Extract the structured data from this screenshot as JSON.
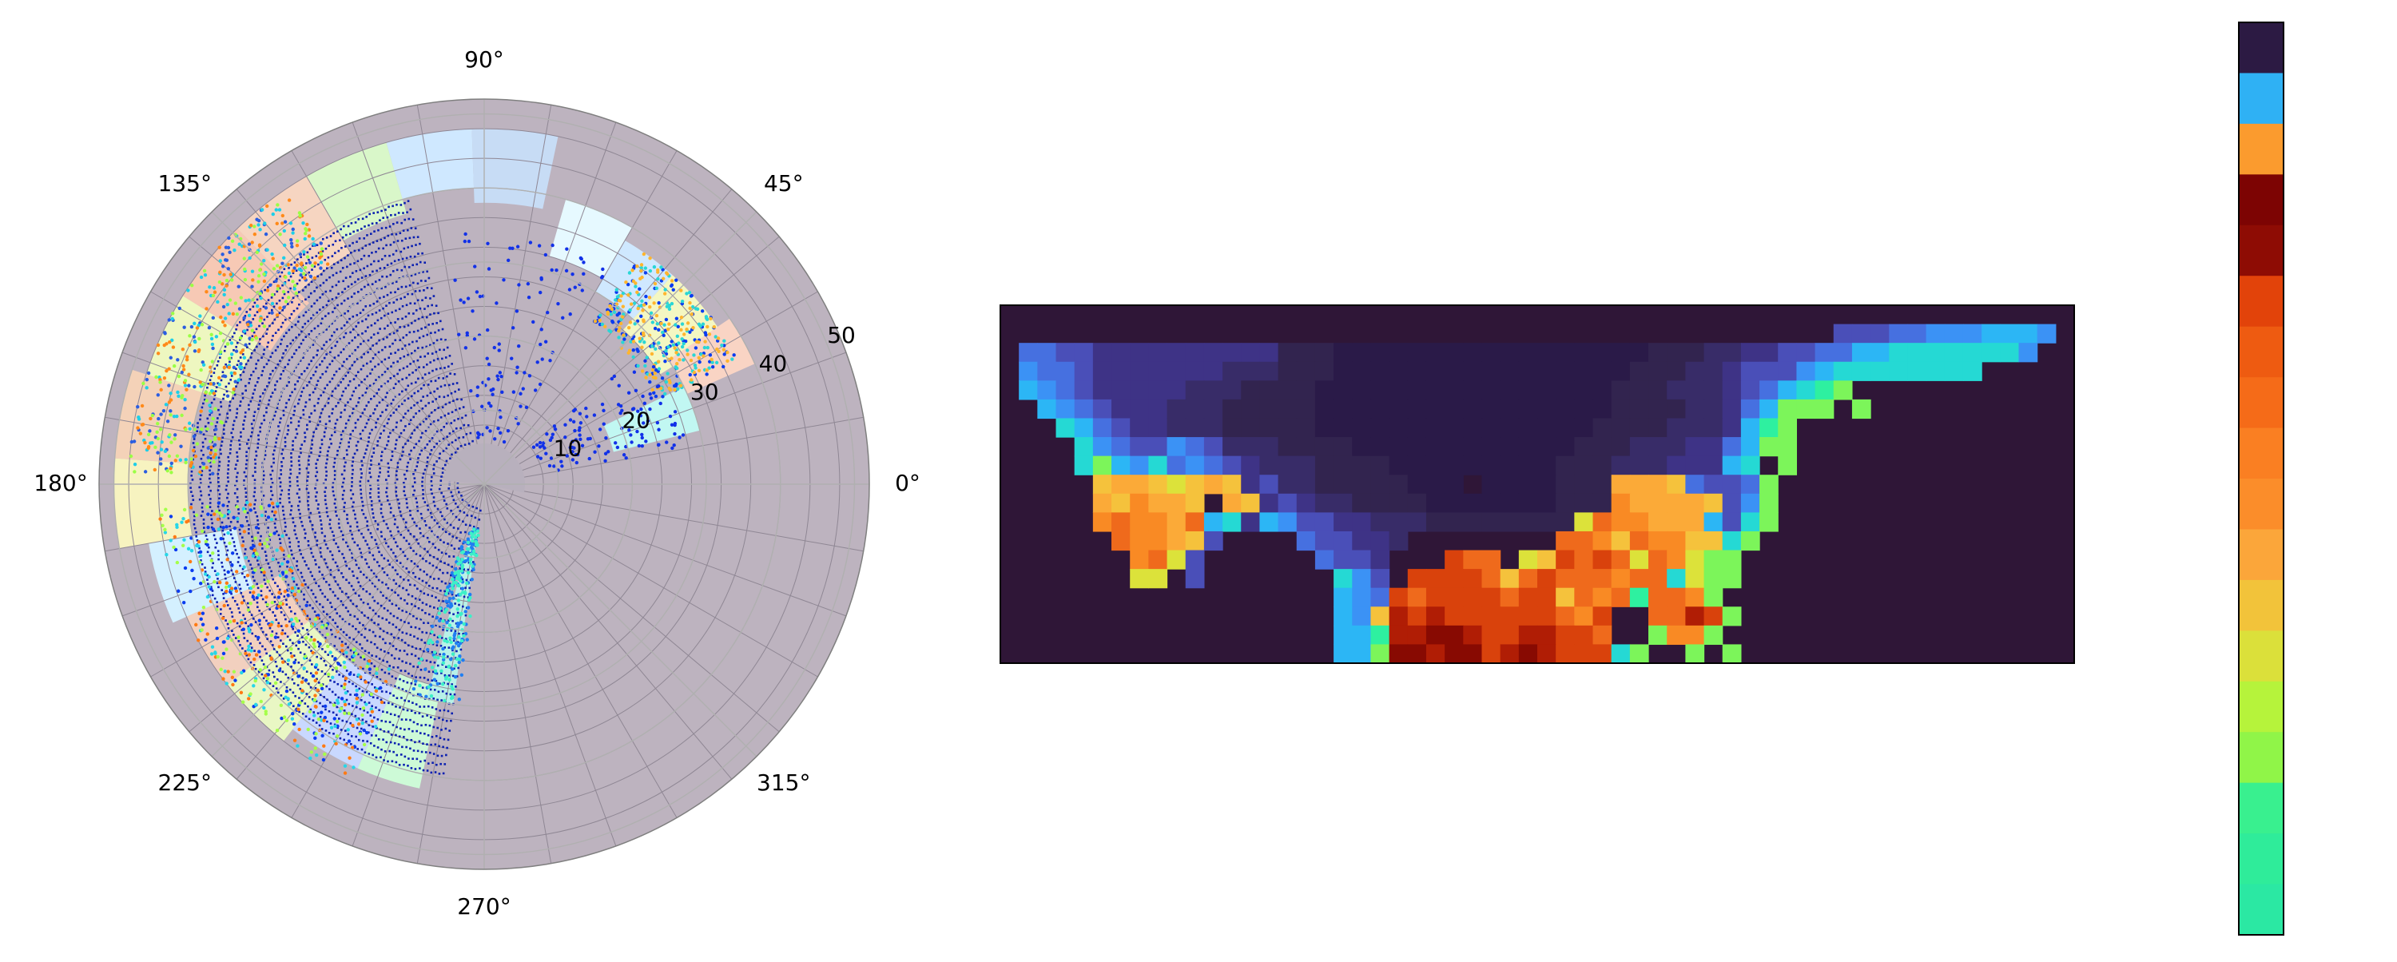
{
  "chart_data": [
    {
      "type": "scatter",
      "subtype": "polar",
      "title": "",
      "angular_ticks": [
        {
          "deg": 0,
          "label": "0°"
        },
        {
          "deg": 45,
          "label": "45°"
        },
        {
          "deg": 90,
          "label": "90°"
        },
        {
          "deg": 135,
          "label": "135°"
        },
        {
          "deg": 180,
          "label": "180°"
        },
        {
          "deg": 225,
          "label": "225°"
        },
        {
          "deg": 270,
          "label": "270°"
        },
        {
          "deg": 315,
          "label": "315°"
        }
      ],
      "radial_ticks": [
        {
          "r": 10,
          "label": "10"
        },
        {
          "r": 20,
          "label": "20"
        },
        {
          "r": 30,
          "label": "30"
        },
        {
          "r": 40,
          "label": "40"
        },
        {
          "r": 50,
          "label": "50"
        }
      ],
      "rlim": [
        0,
        52
      ],
      "radial_label_angle_deg": 22.5,
      "grid": true,
      "background_cell_color": "#bdb3bf",
      "ring_point_color": "#0a1fb0",
      "contour_rings": {
        "r_start": 3.5,
        "r_step": 1.2,
        "r_end": 40,
        "theta_start_deg": 105,
        "theta_end_deg": 262
      },
      "colored_cells": [
        {
          "theta": [
            78,
            92
          ],
          "r": [
            38,
            48
          ],
          "color": "#c7dcf5"
        },
        {
          "theta": [
            92,
            106
          ],
          "r": [
            40,
            48
          ],
          "color": "#cfe8ff"
        },
        {
          "theta": [
            106,
            120
          ],
          "r": [
            38,
            48
          ],
          "color": "#d9f7c9"
        },
        {
          "theta": [
            120,
            134
          ],
          "r": [
            36,
            48
          ],
          "color": "#f6d5c1"
        },
        {
          "theta": [
            134,
            148
          ],
          "r": [
            34,
            48
          ],
          "color": "#f7c9b5"
        },
        {
          "theta": [
            148,
            162
          ],
          "r": [
            36,
            48
          ],
          "color": "#eef7c0"
        },
        {
          "theta": [
            162,
            176
          ],
          "r": [
            40,
            50
          ],
          "color": "#f4d2b8"
        },
        {
          "theta": [
            176,
            190
          ],
          "r": [
            40,
            50
          ],
          "color": "#f7f3c0"
        },
        {
          "theta": [
            190,
            204
          ],
          "r": [
            34,
            46
          ],
          "color": "#d4f0ff"
        },
        {
          "theta": [
            204,
            218
          ],
          "r": [
            30,
            44
          ],
          "color": "#f2d0bf"
        },
        {
          "theta": [
            218,
            232
          ],
          "r": [
            30,
            44
          ],
          "color": "#e9f7c4"
        },
        {
          "theta": [
            232,
            246
          ],
          "r": [
            30,
            42
          ],
          "color": "#c9d8ff"
        },
        {
          "theta": [
            246,
            258
          ],
          "r": [
            28,
            42
          ],
          "color": "#cdfad7"
        },
        {
          "theta": [
            255,
            262
          ],
          "r": [
            6,
            30
          ],
          "color": "#b8f1e8"
        },
        {
          "theta": [
            32,
            48
          ],
          "r": [
            28,
            38
          ],
          "color": "#f4f7c2"
        },
        {
          "theta": [
            24,
            34
          ],
          "r": [
            30,
            40
          ],
          "color": "#f9d4c4"
        },
        {
          "theta": [
            48,
            60
          ],
          "r": [
            30,
            38
          ],
          "color": "#cfe8ff"
        },
        {
          "theta": [
            60,
            74
          ],
          "r": [
            32,
            40
          ],
          "color": "#e6f9ff"
        },
        {
          "theta": [
            14,
            26
          ],
          "r": [
            18,
            30
          ],
          "color": "#c1f7f2"
        }
      ],
      "scatter_clusters": [
        {
          "theta": [
            124,
            178
          ],
          "r": [
            36,
            48
          ],
          "color": "#2b5de0"
        },
        {
          "theta": [
            124,
            178
          ],
          "r": [
            36,
            48
          ],
          "color": "#1ecfe8"
        },
        {
          "theta": [
            124,
            178
          ],
          "r": [
            36,
            48
          ],
          "color": "#ff8a1a"
        },
        {
          "theta": [
            124,
            178
          ],
          "r": [
            36,
            48
          ],
          "color": "#9bff45"
        },
        {
          "theta": [
            184,
            246
          ],
          "r": [
            28,
            44
          ],
          "color": "#0a3cf0"
        },
        {
          "theta": [
            184,
            246
          ],
          "r": [
            28,
            44
          ],
          "color": "#27d6e8"
        },
        {
          "theta": [
            184,
            246
          ],
          "r": [
            28,
            44
          ],
          "color": "#ff7a14"
        },
        {
          "theta": [
            184,
            246
          ],
          "r": [
            28,
            44
          ],
          "color": "#a5ff4a"
        },
        {
          "theta": [
            26,
            56
          ],
          "r": [
            26,
            38
          ],
          "color": "#0a3cf0"
        },
        {
          "theta": [
            26,
            56
          ],
          "r": [
            26,
            38
          ],
          "color": "#2ad6d6"
        },
        {
          "theta": [
            26,
            56
          ],
          "r": [
            26,
            38
          ],
          "color": "#ffb52e"
        },
        {
          "theta": [
            60,
            100
          ],
          "r": [
            6,
            34
          ],
          "color": "#1231e8"
        },
        {
          "theta": [
            10,
            40
          ],
          "r": [
            8,
            28
          ],
          "color": "#1231e8"
        },
        {
          "theta": [
            250,
            264
          ],
          "r": [
            6,
            30
          ],
          "color": "#1f7ef2"
        },
        {
          "theta": [
            250,
            264
          ],
          "r": [
            6,
            30
          ],
          "color": "#3cf0c8"
        }
      ]
    },
    {
      "type": "heatmap",
      "title": "",
      "n_cols": 58,
      "n_rows": 19,
      "background_color": "#2f1637",
      "colors": {
        "N": "#2f1637",
        "a": "#2a1a48",
        "b": "#32244f",
        "c": "#382c68",
        "d": "#3e3386",
        "e": "#4a4fb8",
        "f": "#4670e0",
        "g": "#3b92f5",
        "h": "#2cb6f5",
        "i": "#25d9d4",
        "j": "#2ef0a0",
        "k": "#7cf55a",
        "l": "#a6f24a",
        "m": "#dce23a",
        "n": "#f5c23c",
        "o": "#fbaa38",
        "p": "#f98a24",
        "q": "#ef6a1c",
        "r": "#d9420c",
        "s": "#b01d05",
        "t": "#880a02"
      },
      "grid": [
        "NNNNNNNNNNNNNNNNNNNNNNNNNNNNNNNNNNNNNNNNNNNNNNNNNNNNNNNNNN",
        "NNNNNNNNNNNNNNNNNNNNNNNNNNNNNNNNNNNNNNNNNNNNNeeeffggghhhgN",
        "NffeeddddddddddbbbaaaaaaaaaaaaaaaaabbbccddeeffhhiiiiiiigNN",
        "NgffedddddddcccbbbaaaaaaaaaaaaaaaabbbccdeeeghiiiiiiiiNNNNN",
        "NhgfedddddcccbbbbaaaaaaaaaaaaaaaabbbcccdefhijkNNNNNNNNNNNN",
        "NNhgfedddcccbbbbbaaaaaaaaaaaaaaaabbbbccdfhkkkNkNNNNNNNNNNN",
        "NNNihfeddcccbbbbbaaaaaaaaaaaaaaabbbbcccdhjkNNNNNNNNNNNNNNN",
        "NNNNigfeegfecccbbbbaaaaaaaaaaaabbbcccddfhkkNNNNNNNNNNNNNNN",
        "NNNNikhgifgfedcccbbbbaaaaaaaaabbbcccdddhiNkNNNNNNNNNNNNNNN",
        "NNNNNnoonmnondeccbbbbbaaaNaaaabbbooonfeefkNNNNNNNNNNNNNNNN",
        "NNNNNonpoonNondedccbbbbaaaaaaabbbpoooonegkNNNNNNNNNNNNNNNN",
        "NNNNNpqppoqhidhgeeddcccbbbbbbbbmqppoooheikNNNNNNNNNNNNNNNN",
        "NNNNNNqpponeNNNNfeeddcNNNNNNNNqqpnqppnnikNNNNNNNNNNNNNNNNN",
        "NNNNNNNpqmeNNNNNNfeedNNNrqqNmnrqrqmqpmkkNNNNNNNNNNNNNNNNNN",
        "NNNNNNNmmNeNNNNNNNigeNrrrrqnqrqqqpqqimkkNNNNNNNNNNNNNNNNNN",
        "NNNNNNNNNNNNNNNNNNhgfrqrrrrqrrnqpqjqqpkNNNNNNNNNNNNNNNNNNN",
        "NNNNNNNNNNNNNNNNNNhgnsrsrrrrrrqprNNqqsrkNNNNNNNNNNNNNNNNNN",
        "NNNNNNNNNNNNNNNNNNhhjssttsrrssrrqNNkppkNNNNNNNNNNNNNNNNNNN",
        "NNNNNNNNNNNNNNNNNNhhkttsttrstsrrrikNNkNkNNNNNNNNNNNNNNNNNN"
      ]
    },
    {
      "type": "colorbar",
      "title": "",
      "colors": [
        "#2c1a43",
        "#2fb1f4",
        "#fb9b2e",
        "#7d0403",
        "#8e0c04",
        "#e2430a",
        "#ee5b11",
        "#f56b18",
        "#fa7f22",
        "#fb8d2a",
        "#fba63a",
        "#f2c33a",
        "#dbe03a",
        "#b6f33b",
        "#90f548",
        "#39f08f",
        "#2fec9a",
        "#2be8a3"
      ]
    }
  ]
}
